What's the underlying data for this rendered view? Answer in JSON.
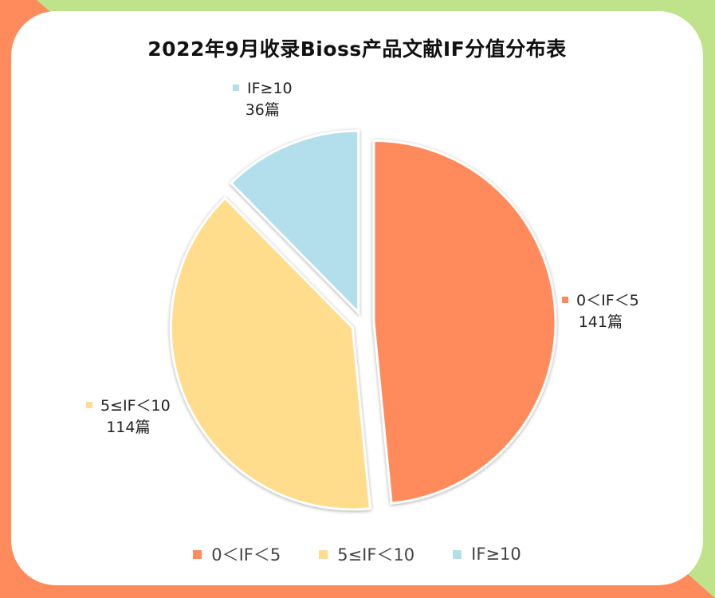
{
  "chart_data": {
    "type": "pie",
    "title": "2022年9月收录Bioss产品文献IF分值分布表",
    "categories": [
      "0＜IF＜5",
      "5≤IF＜10",
      "IF≥10"
    ],
    "values": [
      141,
      114,
      36
    ],
    "value_labels": [
      "141篇",
      "114篇",
      "36篇"
    ],
    "colors": [
      "#ff8a5c",
      "#ffdd8c",
      "#b2dfeb"
    ],
    "exploded": true,
    "legend_position": "bottom"
  },
  "background_colors": {
    "top_right": "#bfe38a",
    "left": "#ff8a5c",
    "card": "#ffffff"
  }
}
